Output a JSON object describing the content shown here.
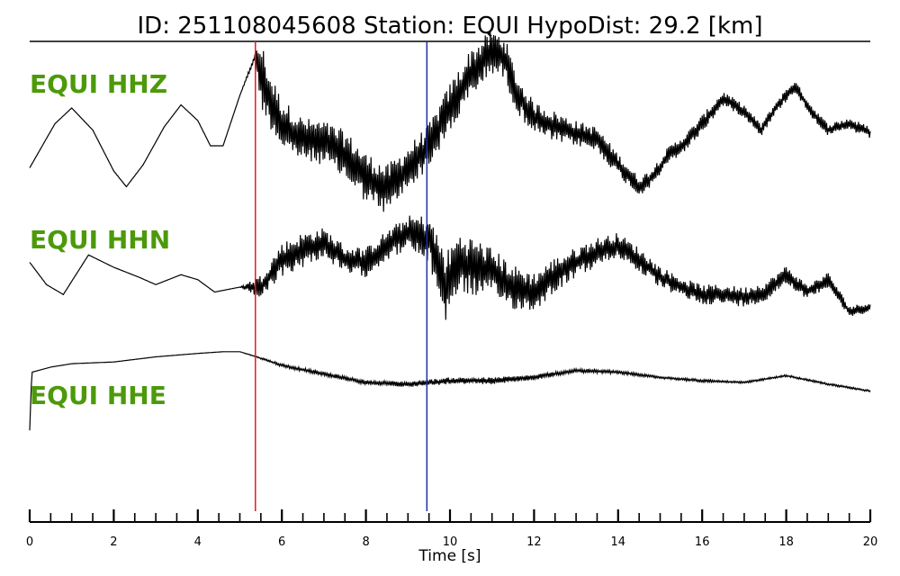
{
  "title": "ID: 251108045608   Station: EQUI   HypoDist:     29.2 [km]",
  "chart_data": {
    "type": "line",
    "xlabel": "Time [s]",
    "xlim": [
      0,
      20
    ],
    "x_major_ticks": [
      0,
      2,
      4,
      6,
      8,
      10,
      12,
      14,
      16,
      18,
      20
    ],
    "x_minor_step": 0.5,
    "grid": false,
    "label_color": "#4c9a0a",
    "picks": [
      {
        "time": 5.37,
        "color": "#e8191b"
      },
      {
        "time": 9.45,
        "color": "#1f2fa8"
      }
    ],
    "series": [
      {
        "name": "EQUI HHZ",
        "t": [
          0,
          0.6,
          1.0,
          1.5,
          2.0,
          2.3,
          2.7,
          3.2,
          3.6,
          4.0,
          4.3,
          4.6,
          5.0,
          5.35,
          5.5,
          5.7,
          6.0,
          6.5,
          7.0,
          7.5,
          8.0,
          8.5,
          9.0,
          9.5,
          10.0,
          10.5,
          11.0,
          11.3,
          11.6,
          12.0,
          12.5,
          13.0,
          13.5,
          14.0,
          14.5,
          14.8,
          15.2,
          15.6,
          16.0,
          16.5,
          17.0,
          17.4,
          17.8,
          18.2,
          18.6,
          19.0,
          19.5,
          20.0
        ],
        "v": [
          -0.55,
          0.15,
          0.4,
          0.05,
          -0.6,
          -0.85,
          -0.5,
          0.1,
          0.45,
          0.2,
          -0.2,
          -0.2,
          0.6,
          1.2,
          0.95,
          0.55,
          0.15,
          -0.1,
          -0.15,
          -0.35,
          -0.7,
          -0.9,
          -0.55,
          -0.2,
          0.4,
          0.95,
          1.3,
          1.2,
          0.6,
          0.25,
          0.1,
          0.0,
          -0.1,
          -0.5,
          -0.85,
          -0.7,
          -0.35,
          -0.15,
          0.15,
          0.55,
          0.35,
          0.05,
          0.45,
          0.75,
          0.35,
          0.05,
          0.15,
          0.0
        ],
        "noise": [
          0,
          0,
          0,
          0,
          0,
          0,
          0,
          0,
          0,
          0,
          0,
          0,
          0,
          0.05,
          0.55,
          0.45,
          0.4,
          0.35,
          0.35,
          0.4,
          0.4,
          0.4,
          0.35,
          0.35,
          0.4,
          0.4,
          0.35,
          0.35,
          0.3,
          0.25,
          0.25,
          0.2,
          0.2,
          0.18,
          0.15,
          0.14,
          0.14,
          0.14,
          0.14,
          0.12,
          0.1,
          0.1,
          0.1,
          0.1,
          0.1,
          0.1,
          0.1,
          0.1
        ]
      },
      {
        "name": "EQUI HHN",
        "t": [
          0,
          0.4,
          0.8,
          1.4,
          2.0,
          2.6,
          3.0,
          3.6,
          4.0,
          4.4,
          5.0,
          5.5,
          6.0,
          6.5,
          7.0,
          7.5,
          8.0,
          8.5,
          9.0,
          9.5,
          9.9,
          10.2,
          10.6,
          11.0,
          11.5,
          12.0,
          12.5,
          13.0,
          13.5,
          14.0,
          14.5,
          15.0,
          15.5,
          16.0,
          16.5,
          17.0,
          17.5,
          18.0,
          18.5,
          19.0,
          19.5,
          20.0
        ],
        "v": [
          0.3,
          -0.15,
          -0.35,
          0.45,
          0.2,
          0.0,
          -0.15,
          0.05,
          -0.05,
          -0.3,
          -0.2,
          -0.2,
          0.35,
          0.55,
          0.7,
          0.35,
          0.3,
          0.65,
          0.9,
          0.75,
          -0.2,
          0.3,
          0.2,
          0.1,
          -0.2,
          -0.3,
          0.05,
          0.3,
          0.5,
          0.65,
          0.35,
          0.0,
          -0.2,
          -0.35,
          -0.35,
          -0.4,
          -0.3,
          0.05,
          -0.3,
          -0.05,
          -0.7,
          -0.6
        ],
        "noise": [
          0,
          0,
          0,
          0,
          0,
          0,
          0,
          0,
          0,
          0,
          0,
          0.25,
          0.35,
          0.35,
          0.3,
          0.3,
          0.3,
          0.3,
          0.35,
          0.5,
          0.7,
          0.6,
          0.6,
          0.5,
          0.45,
          0.4,
          0.35,
          0.3,
          0.3,
          0.25,
          0.25,
          0.22,
          0.2,
          0.2,
          0.2,
          0.2,
          0.2,
          0.18,
          0.15,
          0.15,
          0.12,
          0.1
        ]
      },
      {
        "name": "EQUI HHE",
        "t": [
          0,
          0.05,
          0.5,
          1.0,
          2.0,
          3.0,
          4.0,
          4.6,
          5.0,
          5.4,
          6.0,
          7.0,
          8.0,
          9.0,
          10.0,
          11.0,
          12.0,
          13.0,
          14.0,
          15.0,
          16.0,
          17.0,
          18.0,
          19.0,
          20.0
        ],
        "v": [
          -1.4,
          0.3,
          0.45,
          0.55,
          0.6,
          0.75,
          0.85,
          0.9,
          0.9,
          0.75,
          0.5,
          0.25,
          0.0,
          -0.05,
          0.05,
          0.05,
          0.15,
          0.35,
          0.3,
          0.15,
          0.05,
          0.0,
          0.2,
          -0.05,
          -0.25
        ],
        "noise": [
          0,
          0,
          0,
          0,
          0,
          0,
          0,
          0,
          0,
          0.02,
          0.05,
          0.06,
          0.07,
          0.08,
          0.1,
          0.1,
          0.08,
          0.06,
          0.05,
          0.04,
          0.04,
          0.03,
          0.03,
          0.03,
          0.03
        ]
      }
    ]
  }
}
